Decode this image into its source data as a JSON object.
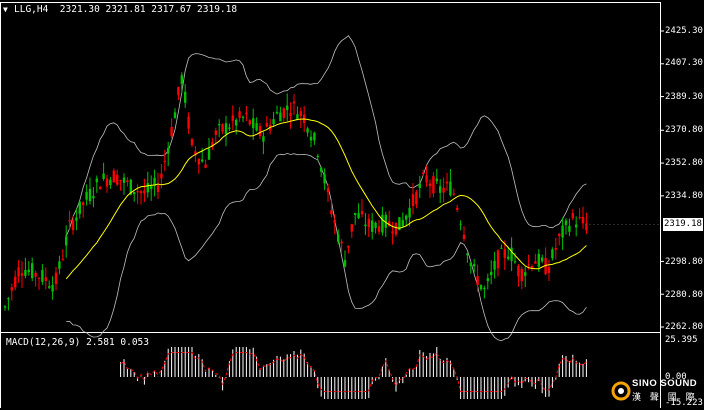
{
  "header": {
    "symbol_timeframe": "LLG,H4",
    "ohlc": "2321.30 2321.81 2317.67 2319.18",
    "dropdown_glyph": "▼"
  },
  "price_axis": {
    "ticks": [
      "2425.30",
      "2407.30",
      "2389.30",
      "2370.80",
      "2352.80",
      "2334.80",
      "2298.80",
      "2280.80",
      "2262.80"
    ],
    "tick_values": [
      2425.3,
      2407.3,
      2389.3,
      2370.8,
      2352.8,
      2334.8,
      2298.8,
      2280.8,
      2262.8
    ],
    "current_price": "2319.18"
  },
  "macd": {
    "label": "MACD(12,26,9) 2.581 0.053",
    "axis_top": "25.395",
    "axis_zero": "0.00",
    "axis_bottom": "-15.223"
  },
  "logo": {
    "name": "SINO SOUND",
    "sub": "漢 聲 國 際",
    "accent": "#f5a300"
  },
  "colors": {
    "background": "#000000",
    "bull": "#00c000",
    "bear": "#ff0000",
    "bollinger": "#c0c0c0",
    "ma": "#ffff00",
    "macd_hist": "#ffffff",
    "macd_signal": "#ff0000",
    "grid_border": "#ffffff"
  }
}
